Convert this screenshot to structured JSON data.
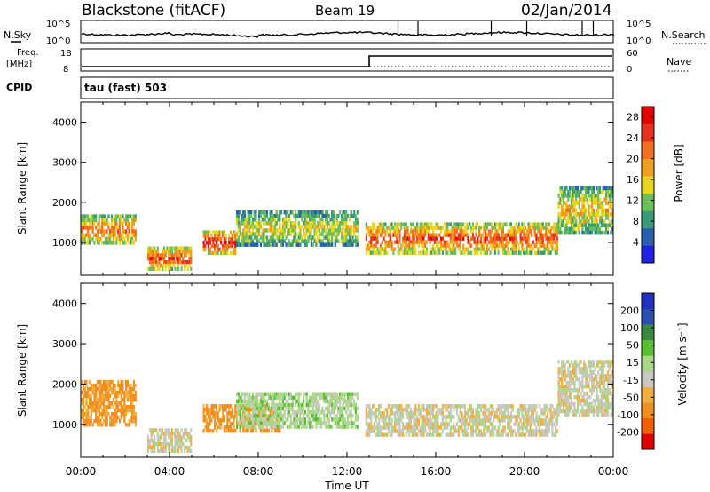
{
  "header": {
    "station": "Blackstone (fitACF)",
    "beam": "Beam 19",
    "date": "02/Jan/2014"
  },
  "noise_panel": {
    "left_label": "N.Sky",
    "right_label": "N.Search",
    "left_ticks": [
      "10^5",
      "10^0"
    ],
    "right_ticks": [
      "10^5",
      "10^0"
    ]
  },
  "freq_panel": {
    "left_label_1": "Freq.",
    "left_label_2": "[MHz]",
    "right_label": "Nave",
    "left_ticks": [
      "18",
      "8"
    ],
    "right_ticks": [
      "60",
      "0"
    ]
  },
  "cpid_panel": {
    "label": "CPID",
    "value": "tau (fast) 503"
  },
  "x_axis": {
    "label": "Time UT",
    "ticks": [
      "00:00",
      "04:00",
      "08:00",
      "12:00",
      "16:00",
      "20:00",
      "00:00"
    ]
  },
  "colors": {
    "power_scale": [
      "#2020e6",
      "#2a5fb0",
      "#3a9a78",
      "#6cbe58",
      "#e8d820",
      "#f0a020",
      "#f07020",
      "#e83020",
      "#e60000"
    ],
    "velocity_scale": [
      "#e00000",
      "#f06000",
      "#f09020",
      "#f0b040",
      "#c8c8c0",
      "#a8d888",
      "#58c030",
      "#3a8840",
      "#2a4fb0",
      "#2030c0"
    ]
  },
  "chart_data": [
    {
      "type": "heatmap",
      "title": "",
      "ylabel": "Slant Range [km]",
      "xlabel": "",
      "y_ticks": [
        1000,
        2000,
        3000,
        4000
      ],
      "ylim": [
        180,
        4500
      ],
      "xlim_hours": [
        0,
        24
      ],
      "colorbar": {
        "label": "Power [dB]",
        "ticks": [
          4,
          8,
          12,
          16,
          20,
          24,
          28
        ],
        "range": [
          0,
          30
        ]
      },
      "dominant_echo_bands": [
        {
          "time_range": [
            "00:00",
            "02:30"
          ],
          "range_km": [
            950,
            1700
          ],
          "power_db": 22
        },
        {
          "time_range": [
            "03:00",
            "05:00"
          ],
          "range_km": [
            300,
            900
          ],
          "power_db": 25
        },
        {
          "time_range": [
            "05:30",
            "07:00"
          ],
          "range_km": [
            700,
            1300
          ],
          "power_db": 28
        },
        {
          "time_range": [
            "07:00",
            "12:30"
          ],
          "range_km": [
            900,
            1800
          ],
          "power_db": 16
        },
        {
          "time_range": [
            "12:50",
            "21:30"
          ],
          "range_km": [
            700,
            1500
          ],
          "power_db": 24
        },
        {
          "time_range": [
            "21:30",
            "24:00"
          ],
          "range_km": [
            1200,
            2400
          ],
          "power_db": 18
        }
      ]
    },
    {
      "type": "heatmap",
      "title": "",
      "ylabel": "Slant Range [km]",
      "xlabel": "Time UT",
      "y_ticks": [
        1000,
        2000,
        3000,
        4000
      ],
      "ylim": [
        180,
        4500
      ],
      "xlim_hours": [
        0,
        24
      ],
      "colorbar": {
        "label": "Velocity [m s⁻¹]",
        "ticks": [
          200,
          100,
          50,
          15,
          -15,
          -50,
          -100,
          -200
        ],
        "range": [
          -250,
          250
        ]
      },
      "dominant_echo_bands": [
        {
          "time_range": [
            "00:00",
            "02:30"
          ],
          "range_km": [
            950,
            2100
          ],
          "velocity_ms": -60
        },
        {
          "time_range": [
            "03:00",
            "05:00"
          ],
          "range_km": [
            300,
            900
          ],
          "velocity_ms": 0
        },
        {
          "time_range": [
            "05:30",
            "09:00"
          ],
          "range_km": [
            800,
            1500
          ],
          "velocity_ms": -70
        },
        {
          "time_range": [
            "07:00",
            "12:30"
          ],
          "range_km": [
            900,
            1800
          ],
          "velocity_ms": 30
        },
        {
          "time_range": [
            "12:50",
            "21:30"
          ],
          "range_km": [
            700,
            1500
          ],
          "velocity_ms": 0
        },
        {
          "time_range": [
            "21:30",
            "24:00"
          ],
          "range_km": [
            1200,
            2600
          ],
          "velocity_ms": 0
        }
      ]
    }
  ]
}
